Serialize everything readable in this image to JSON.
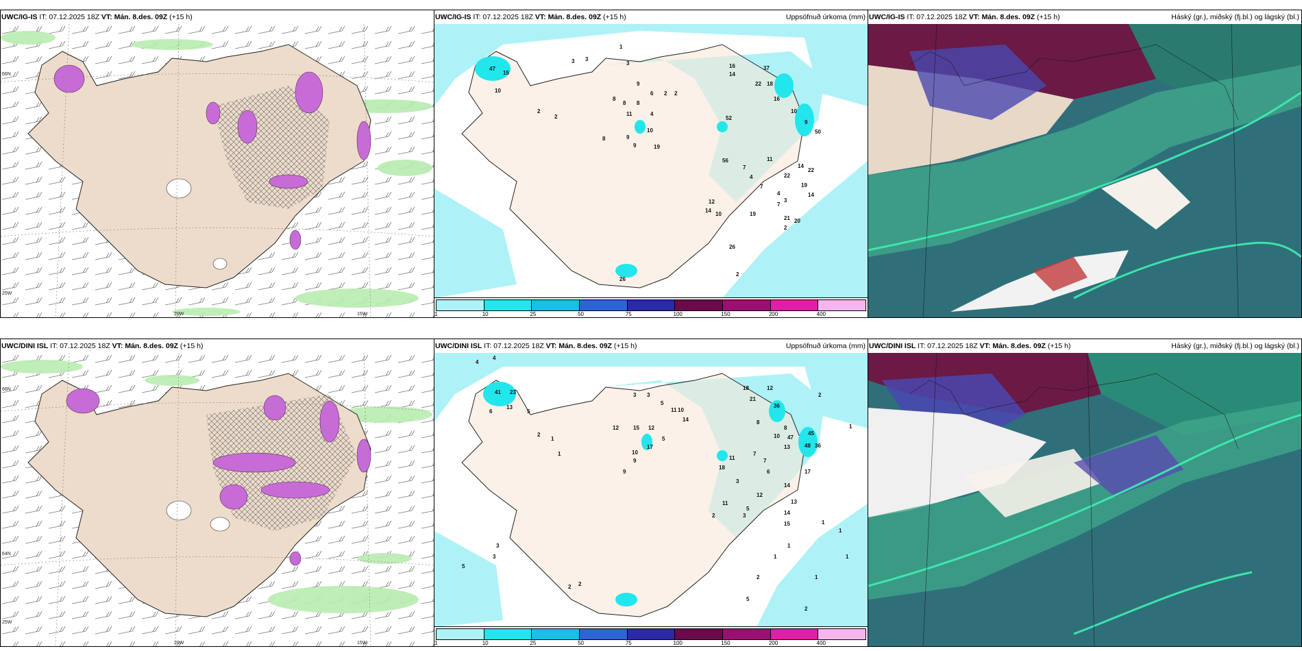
{
  "panels": [
    {
      "model": "UWC/IG-IS",
      "it": "IT: 07.12.2025 18Z",
      "vt": "VT: Mán. 8.des. 09Z",
      "lead": "(+15 h)",
      "right": ""
    },
    {
      "model": "UWC/IG-IS",
      "it": "IT: 07.12.2025 18Z",
      "vt": "VT: Mán. 8.des. 09Z",
      "lead": "(+15 h)",
      "right": "Uppsöfnuð úrkoma (mm)"
    },
    {
      "model": "UWC/IG-IS",
      "it": "IT: 07.12.2025 18Z",
      "vt": "VT: Mán. 8.des. 09Z",
      "lead": "(+15 h)",
      "right": "Háský (gr.), miðský (fj.bl.) og lágský (bl.)"
    },
    {
      "model": "UWC/DINI ISL",
      "it": "IT: 07.12.2025 18Z",
      "vt": "VT: Mán. 8.des. 09Z",
      "lead": "(+15 h)",
      "right": ""
    },
    {
      "model": "UWC/DINI ISL",
      "it": "IT: 07.12.2025 18Z",
      "vt": "VT: Mán. 8.des. 09Z",
      "lead": "(+15 h)",
      "right": "Uppsöfnuð úrkoma (mm)"
    },
    {
      "model": "UWC/DINI ISL",
      "it": "IT: 07.12.2025 18Z",
      "vt": "VT: Mán. 8.des. 09Z",
      "lead": "(+15 h)",
      "right": "Háský (gr.), miðský (fj.bl.) og lágský (bl.)"
    }
  ],
  "axis_labels": {
    "w20": "20W",
    "w15": "15W",
    "w25": "25W",
    "n66": "66N",
    "n64": "64N"
  },
  "precip_colorbar": {
    "ticks": [
      "1",
      "10",
      "25",
      "50",
      "75",
      "100",
      "150",
      "200",
      "400"
    ],
    "colors": [
      "#aef2f7",
      "#22e6ec",
      "#18c0e6",
      "#2c64d6",
      "#2a2aa6",
      "#6a0a4a",
      "#9a1070",
      "#e01ea6",
      "#f5b6f0"
    ]
  },
  "precip_values_top": [
    "47",
    "15",
    "10",
    "2",
    "2",
    "3",
    "3",
    "1",
    "3",
    "9",
    "6",
    "2",
    "2",
    "8",
    "8",
    "8",
    "11",
    "4",
    "9",
    "10",
    "19",
    "16",
    "14",
    "22",
    "18",
    "16",
    "37",
    "10",
    "9",
    "50",
    "52",
    "56",
    "7",
    "11",
    "22",
    "4",
    "7",
    "4",
    "14",
    "3",
    "12",
    "14",
    "10",
    "19",
    "7",
    "8",
    "9",
    "19",
    "22",
    "21",
    "20",
    "14",
    "2",
    "2",
    "26",
    "26"
  ],
  "precip_values_bottom": [
    "4",
    "4",
    "41",
    "23",
    "13",
    "6",
    "5",
    "2",
    "1",
    "1",
    "3",
    "3",
    "5",
    "11",
    "10",
    "12",
    "15",
    "12",
    "5",
    "17",
    "10",
    "9",
    "14",
    "18",
    "21",
    "36",
    "12",
    "8",
    "8",
    "47",
    "10",
    "45",
    "13",
    "48",
    "36",
    "11",
    "18",
    "7",
    "3",
    "7",
    "6",
    "14",
    "12",
    "13",
    "14",
    "11",
    "15",
    "3",
    "2",
    "17",
    "9",
    "5",
    "1",
    "2",
    "5",
    "3",
    "3",
    "2",
    "2",
    "1",
    "1",
    "5",
    "1",
    "1",
    "1",
    "1",
    "2",
    "2"
  ],
  "cloud_legend": {
    "high": "Háský",
    "mid": "miðský",
    "low": "lágský"
  }
}
